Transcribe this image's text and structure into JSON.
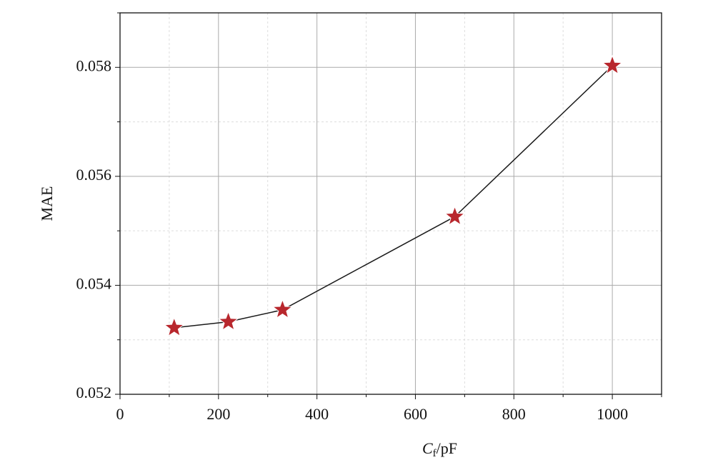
{
  "chart_data": {
    "type": "line",
    "xlabel": {
      "symbol": "C",
      "subscript": "f",
      "unit": "/pF"
    },
    "ylabel": "MAE",
    "x": [
      110,
      220,
      330,
      680,
      1000
    ],
    "series": [
      {
        "color": "#b8272d",
        "line_color": "#1a1a1a",
        "marker": "star",
        "values": [
          0.05322,
          0.05333,
          0.05355,
          0.05526,
          0.05803
        ]
      }
    ],
    "xlim": [
      0,
      1100
    ],
    "ylim": [
      0.052,
      0.059
    ],
    "xticks": [
      0,
      200,
      400,
      600,
      800,
      1000
    ],
    "yticks": [
      0.052,
      0.054,
      0.056,
      0.058
    ],
    "minor_xticks": [
      100,
      300,
      500,
      700,
      900,
      1100
    ],
    "minor_yticks": [
      0.053,
      0.055,
      0.057,
      0.059
    ],
    "grid": true
  }
}
